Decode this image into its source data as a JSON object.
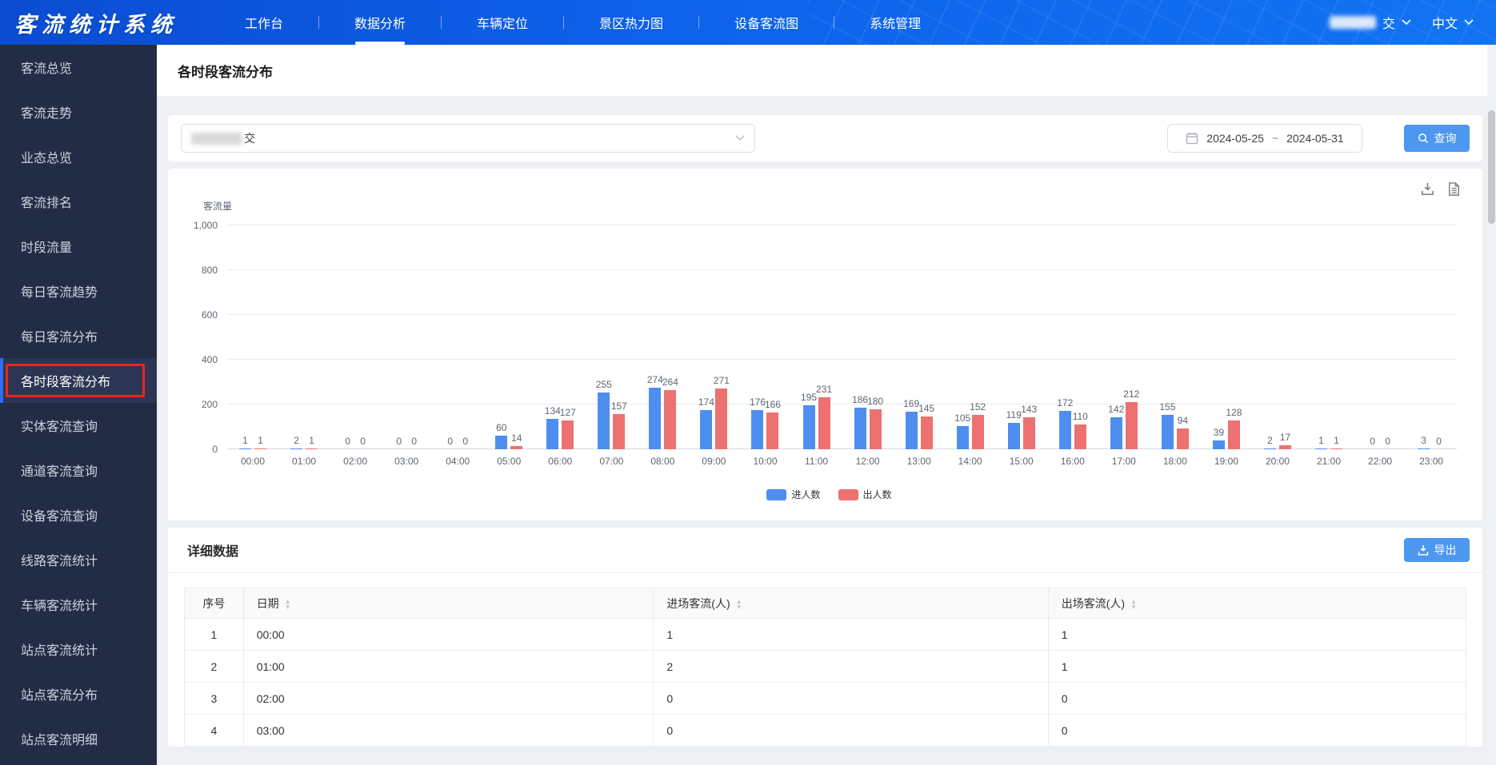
{
  "app": {
    "title": "客流统计系统"
  },
  "header": {
    "nav": [
      {
        "label": "工作台",
        "active": false
      },
      {
        "label": "数据分析",
        "active": true
      },
      {
        "label": "车辆定位",
        "active": false
      },
      {
        "label": "景区热力图",
        "active": false
      },
      {
        "label": "设备客流图",
        "active": false
      },
      {
        "label": "系统管理",
        "active": false
      }
    ],
    "user_visible_suffix": "交",
    "language": "中文"
  },
  "sidebar": {
    "active_index": 7,
    "items": [
      "客流总览",
      "客流走势",
      "业态总览",
      "客流排名",
      "时段流量",
      "每日客流趋势",
      "每日客流分布",
      "各时段客流分布",
      "实体客流查询",
      "通道客流查询",
      "设备客流查询",
      "线路客流统计",
      "车辆客流统计",
      "站点客流统计",
      "站点客流分布",
      "站点客流明细"
    ]
  },
  "page": {
    "title": "各时段客流分布"
  },
  "filters": {
    "line_select_visible_suffix": "交",
    "date_start": "2024-05-25",
    "date_separator": "~",
    "date_end": "2024-05-31",
    "query_label": "查询"
  },
  "chart_data": {
    "type": "bar",
    "y_axis_title": "客流量",
    "ylim": [
      0,
      1000
    ],
    "yticks": [
      0,
      200,
      400,
      600,
      800,
      1000
    ],
    "ytick_labels": [
      "0",
      "200",
      "400",
      "600",
      "800",
      "1,000"
    ],
    "grid": true,
    "legend_position": "bottom",
    "categories": [
      "00:00",
      "01:00",
      "02:00",
      "03:00",
      "04:00",
      "05:00",
      "06:00",
      "07:00",
      "08:00",
      "09:00",
      "10:00",
      "11:00",
      "12:00",
      "13:00",
      "14:00",
      "15:00",
      "16:00",
      "17:00",
      "18:00",
      "19:00",
      "20:00",
      "21:00",
      "22:00",
      "23:00"
    ],
    "series": [
      {
        "name": "进人数",
        "color": "#4e8ef0",
        "values": [
          1,
          2,
          0,
          0,
          0,
          60,
          134,
          255,
          274,
          174,
          176,
          195,
          186,
          169,
          105,
          119,
          172,
          142,
          155,
          39,
          2,
          1,
          0,
          3
        ]
      },
      {
        "name": "出人数",
        "color": "#ee7171",
        "values": [
          1,
          1,
          0,
          0,
          0,
          14,
          127,
          157,
          264,
          271,
          166,
          231,
          180,
          145,
          152,
          143,
          110,
          212,
          94,
          128,
          17,
          1,
          0,
          0
        ]
      }
    ]
  },
  "table_section": {
    "title": "详细数据",
    "export_label": "导出",
    "columns": [
      {
        "label": "序号",
        "sortable": false
      },
      {
        "label": "日期",
        "sortable": true
      },
      {
        "label": "进场客流(人)",
        "sortable": true
      },
      {
        "label": "出场客流(人)",
        "sortable": true
      }
    ],
    "rows": [
      [
        "1",
        "00:00",
        "1",
        "1"
      ],
      [
        "2",
        "01:00",
        "2",
        "1"
      ],
      [
        "3",
        "02:00",
        "0",
        "0"
      ],
      [
        "4",
        "03:00",
        "0",
        "0"
      ]
    ]
  }
}
